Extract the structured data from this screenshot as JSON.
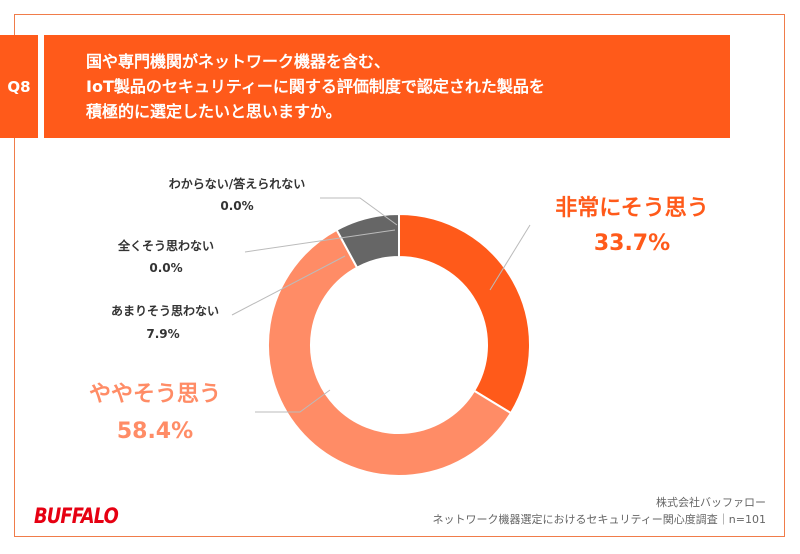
{
  "question": {
    "number": "Q8",
    "lines": [
      "国や専門機関がネットワーク機器を含む、",
      "IoT製品のセキュリティーに関する評価制度で認定された製品を",
      "積極的に選定したいと思いますか。"
    ]
  },
  "chart_data": {
    "type": "pie",
    "donut": true,
    "categories": [
      "非常にそう思う",
      "ややそう思う",
      "あまりそう思わない",
      "全くそう思わない",
      "わからない/答えられない"
    ],
    "values": [
      33.7,
      58.4,
      7.9,
      0.0,
      0.0
    ],
    "labels": [
      "33.7%",
      "58.4%",
      "7.9%",
      "0.0%",
      "0.0%"
    ],
    "colors": [
      "#ff5a1a",
      "#ff8c66",
      "#666666",
      "#666666",
      "#666666"
    ]
  },
  "footer": {
    "company": "株式会社バッファロー",
    "source": "ネットワーク機器選定におけるセキュリティー関心度調査｜n=101",
    "logo": "BUFFALO"
  }
}
